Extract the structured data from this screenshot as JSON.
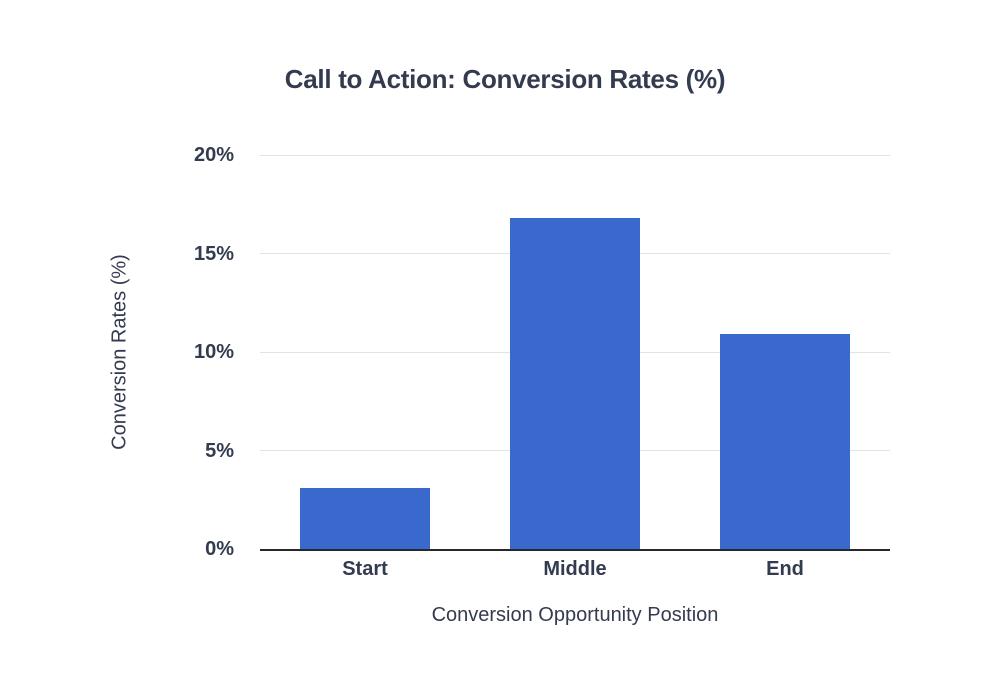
{
  "chart_data": {
    "type": "bar",
    "title": "Call to Action: Conversion Rates (%)",
    "xlabel": "Conversion Opportunity Position",
    "ylabel": "Conversion Rates (%)",
    "categories": [
      "Start",
      "Middle",
      "End"
    ],
    "values": [
      3.1,
      16.8,
      10.9
    ],
    "ylim": [
      0,
      20
    ],
    "yticks": [
      0,
      5,
      10,
      15,
      20
    ],
    "ytick_labels": [
      "0%",
      "5%",
      "10%",
      "15%",
      "20%"
    ],
    "grid": "horizontal-only",
    "legend": "none",
    "colors": {
      "bar": "#3a69cd",
      "text": "#333b4f",
      "gridline": "#e3e3e3",
      "axis": "#26282c",
      "background": "#ffffff"
    }
  }
}
